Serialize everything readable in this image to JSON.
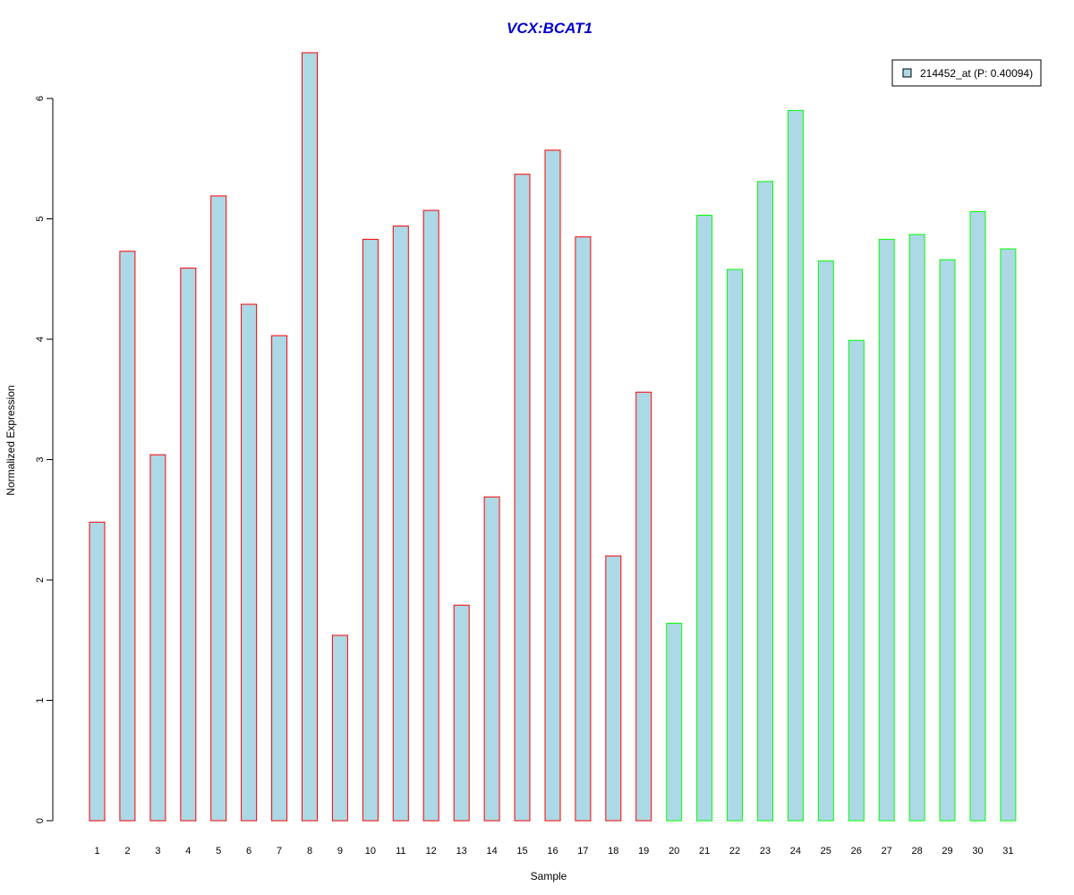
{
  "chart_data": {
    "type": "bar",
    "title": "VCX:BCAT1",
    "xlabel": "Sample",
    "ylabel": "Normalized Expression",
    "categories": [
      "1",
      "2",
      "3",
      "4",
      "5",
      "6",
      "7",
      "8",
      "9",
      "10",
      "11",
      "12",
      "13",
      "14",
      "15",
      "16",
      "17",
      "18",
      "19",
      "20",
      "21",
      "22",
      "23",
      "24",
      "25",
      "26",
      "27",
      "28",
      "29",
      "30",
      "31"
    ],
    "series": [
      {
        "name": "214452_at (P: 0.40094)",
        "values": [
          2.48,
          4.73,
          3.04,
          4.59,
          5.19,
          4.29,
          4.03,
          6.38,
          1.54,
          4.83,
          4.94,
          5.07,
          1.79,
          2.69,
          5.37,
          5.57,
          4.85,
          2.2,
          3.56,
          1.64,
          5.03,
          4.58,
          5.31,
          5.9,
          4.65,
          3.99,
          4.83,
          4.87,
          4.66,
          5.06,
          4.75
        ]
      }
    ],
    "groups": [
      {
        "samples": "1-19",
        "border_color": "#ff0000"
      },
      {
        "samples": "20-31",
        "border_color": "#00ff00"
      }
    ],
    "ylim": [
      0,
      6
    ],
    "yticks": [
      0,
      1,
      2,
      3,
      4,
      5,
      6
    ],
    "grid": false,
    "legend_position": "top-right",
    "colors": {
      "bar_fill": "#add8e6",
      "title": "#0000cc",
      "group1_border": "#ff0000",
      "group2_border": "#00ff00"
    }
  }
}
